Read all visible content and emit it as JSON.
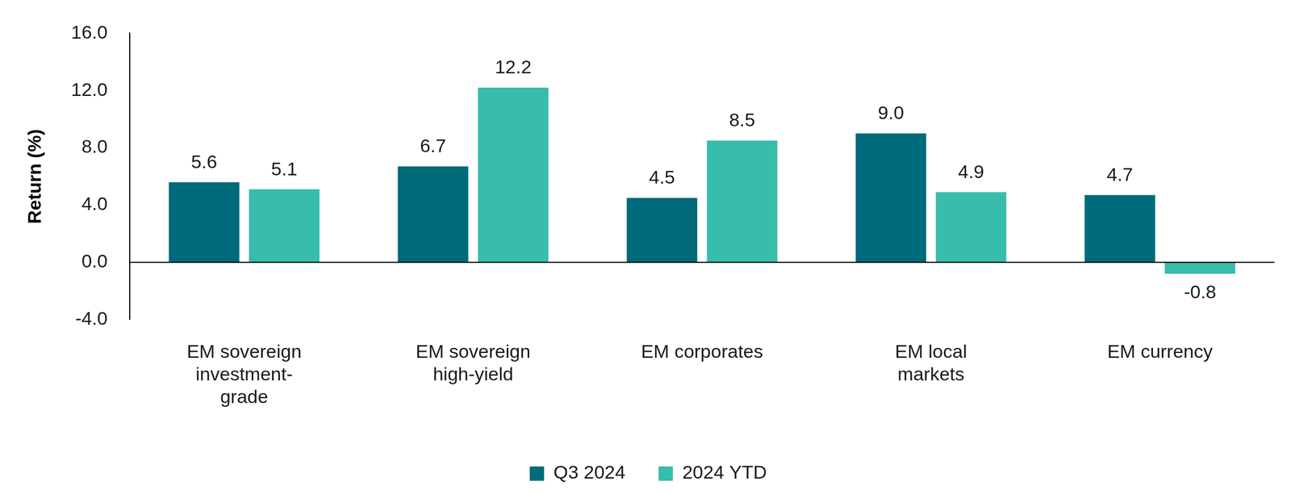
{
  "chart_data": {
    "type": "bar",
    "y_label": "Return (%)",
    "categories": [
      [
        "EM sovereign",
        "investment-",
        "grade"
      ],
      [
        "EM sovereign",
        "high-yield"
      ],
      [
        "EM corporates"
      ],
      [
        "EM local",
        "markets"
      ],
      [
        "EM currency"
      ]
    ],
    "series": [
      {
        "name": "Q3 2024",
        "color": "#006b7a",
        "values": [
          5.6,
          6.7,
          4.5,
          9.0,
          4.7
        ],
        "value_labels": [
          "5.6",
          "6.7",
          "4.5",
          "9.0",
          "4.7"
        ]
      },
      {
        "name": "2024 YTD",
        "color": "#38bcac",
        "values": [
          5.1,
          12.2,
          8.5,
          4.9,
          -0.8
        ]
      }
    ],
    "ylim": [
      -4,
      16
    ],
    "yticks": [
      {
        "value": -4,
        "label": "-4.0"
      },
      {
        "value": 0,
        "label": "0.0"
      },
      {
        "value": 4,
        "label": "4.0"
      },
      {
        "value": 8,
        "label": "8.0"
      },
      {
        "value": 12,
        "label": "12.0"
      },
      {
        "value": 16,
        "label": "16.0"
      }
    ],
    "grid": false,
    "legend": "bottom",
    "data_labels": true
  }
}
